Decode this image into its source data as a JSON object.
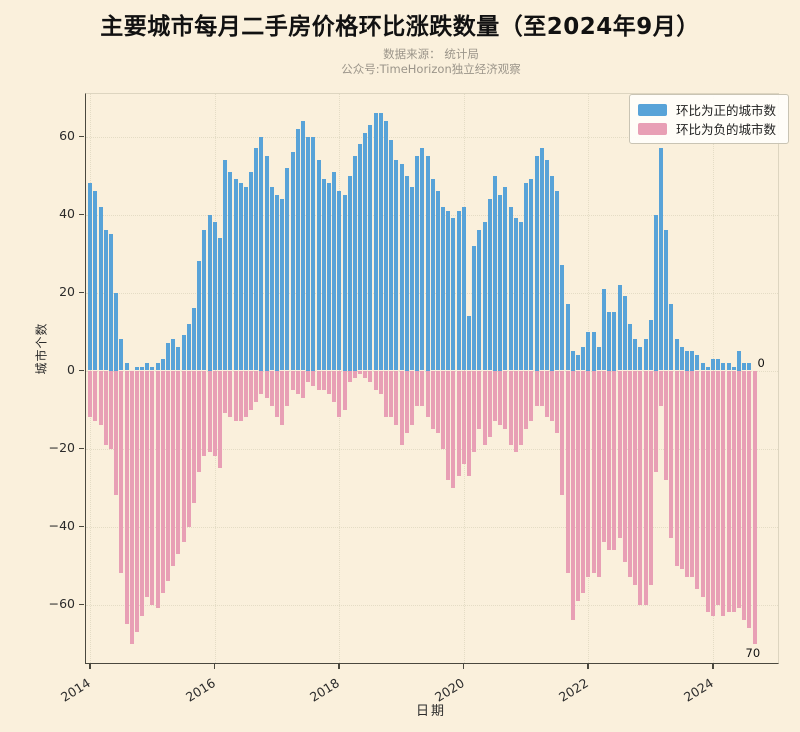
{
  "header": {
    "title": "主要城市每月二手房价格环比涨跌数量（至2024年9月）",
    "source_line": "数据来源： 统计局",
    "wechat_line": "公众号:TimeHorizon独立经济观察"
  },
  "colors": {
    "background": "#faf0dc",
    "positive_bar": "#58a3d8",
    "negative_bar": "#e89fb5",
    "grid": "#e4dcc5",
    "axis": "#4a483e"
  },
  "chart_data": {
    "type": "bar",
    "title": "主要城市每月二手房价格环比涨跌数量（至2024年9月）",
    "xlabel": "日期",
    "ylabel": "城市个数",
    "x_start": "2014-01",
    "x_end": "2024-09",
    "frequency": "monthly",
    "n_points": 129,
    "ylim": [
      -75,
      71
    ],
    "yticks": [
      -60,
      -40,
      -20,
      0,
      20,
      40,
      60
    ],
    "xtick_years": [
      "2014",
      "2016",
      "2018",
      "2020",
      "2022",
      "2024"
    ],
    "grid": true,
    "legend_position": "upper right",
    "series": [
      {
        "name": "环比为正的城市数",
        "color": "#58a3d8",
        "values": [
          48,
          46,
          42,
          36,
          35,
          20,
          8,
          2,
          0,
          1,
          1,
          2,
          1,
          2,
          3,
          7,
          8,
          6,
          9,
          12,
          16,
          28,
          36,
          40,
          38,
          34,
          54,
          51,
          49,
          48,
          47,
          51,
          57,
          60,
          55,
          47,
          45,
          44,
          52,
          56,
          62,
          64,
          60,
          60,
          54,
          49,
          48,
          51,
          46,
          45,
          50,
          55,
          58,
          61,
          63,
          66,
          66,
          64,
          59,
          54,
          53,
          50,
          47,
          55,
          57,
          55,
          49,
          46,
          42,
          41,
          39,
          41,
          42,
          14,
          32,
          36,
          38,
          44,
          50,
          45,
          47,
          42,
          39,
          38,
          48,
          49,
          55,
          57,
          54,
          50,
          46,
          27,
          17,
          5,
          4,
          6,
          10,
          10,
          6,
          21,
          15,
          15,
          22,
          19,
          12,
          8,
          6,
          8,
          13,
          40,
          57,
          36,
          17,
          8,
          6,
          5,
          5,
          4,
          2,
          1,
          3,
          3,
          2,
          2,
          1,
          5,
          2,
          2,
          0
        ]
      },
      {
        "name": "环比为负的城市数",
        "color": "#e89fb5",
        "values": [
          -12,
          -13,
          -14,
          -19,
          -20,
          -32,
          -52,
          -65,
          -70,
          -67,
          -63,
          -58,
          -60,
          -61,
          -57,
          -54,
          -50,
          -47,
          -44,
          -40,
          -34,
          -26,
          -22,
          -21,
          -22,
          -25,
          -11,
          -12,
          -13,
          -13,
          -12,
          -10,
          -8,
          -6,
          -7,
          -9,
          -12,
          -14,
          -9,
          -5,
          -6,
          -7,
          -3,
          -4,
          -5,
          -5,
          -6,
          -8,
          -12,
          -10,
          -3,
          -2,
          -1,
          -2,
          -3,
          -5,
          -6,
          -12,
          -12,
          -14,
          -19,
          -16,
          -14,
          -9,
          -9,
          -12,
          -15,
          -16,
          -20,
          -28,
          -30,
          -27,
          -24,
          -27,
          -21,
          -15,
          -19,
          -17,
          -13,
          -14,
          -15,
          -19,
          -21,
          -19,
          -15,
          -13,
          -9,
          -9,
          -12,
          -13,
          -16,
          -32,
          -52,
          -64,
          -59,
          -57,
          -53,
          -52,
          -53,
          -44,
          -46,
          -46,
          -43,
          -49,
          -53,
          -55,
          -60,
          -60,
          -55,
          -26,
          -9,
          -28,
          -43,
          -50,
          -51,
          -53,
          -53,
          -56,
          -58,
          -62,
          -63,
          -60,
          -63,
          -62,
          -62,
          -61,
          -64,
          -66,
          -70
        ]
      }
    ],
    "annotations": [
      {
        "text": "0",
        "x": "2024-09",
        "series": "环比为正的城市数",
        "value": 0
      },
      {
        "text": "70",
        "x": "2024-09",
        "series": "环比为负的城市数",
        "value": -70
      }
    ]
  }
}
